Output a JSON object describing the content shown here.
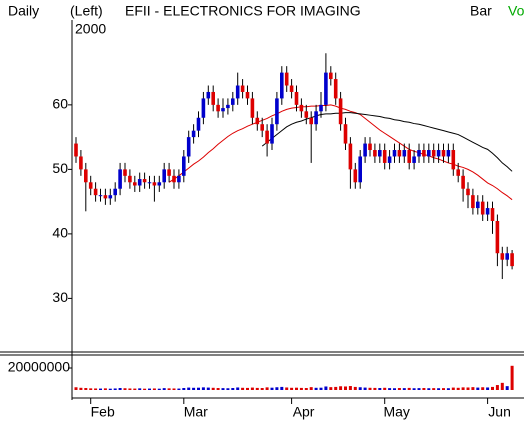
{
  "chart_data": {
    "type": "candlestick",
    "header_left": "Daily",
    "scale_side": "(Left)",
    "year": "2000",
    "title": "EFII - ELECTRONICS FOR IMAGING",
    "chart_style": "Bar",
    "indicator": "Vo",
    "indicator_color": "#00aa00",
    "up_color": "#0000cc",
    "down_color": "#dd0000",
    "categories": [
      null,
      null,
      null,
      "Feb",
      null,
      null,
      null,
      null,
      null,
      null,
      null,
      null,
      null,
      null,
      null,
      null,
      null,
      null,
      null,
      null,
      null,
      null,
      "Mar",
      null,
      null,
      null,
      null,
      null,
      null,
      null,
      null,
      null,
      null,
      null,
      null,
      null,
      null,
      null,
      null,
      null,
      null,
      null,
      null,
      null,
      "Apr",
      null,
      null,
      null,
      null,
      null,
      null,
      null,
      null,
      null,
      null,
      null,
      null,
      null,
      null,
      null,
      null,
      null,
      null,
      "May",
      null,
      null,
      null,
      null,
      null,
      null,
      null,
      null,
      null,
      null,
      null,
      null,
      null,
      null,
      null,
      null,
      null,
      null,
      null,
      null,
      "Jun",
      null,
      null,
      null,
      null,
      null
    ],
    "open": [
      54,
      52,
      50,
      48,
      47,
      46,
      46,
      45.5,
      46,
      47,
      50,
      49,
      48,
      47.5,
      48.5,
      48,
      48,
      47.5,
      48,
      50,
      49,
      48,
      49,
      52,
      55,
      56,
      58,
      61,
      62,
      60,
      59,
      59.5,
      60,
      61,
      63,
      62,
      61,
      58,
      57,
      56,
      54,
      57,
      61,
      65,
      63,
      62,
      60,
      59,
      58,
      57,
      59,
      60,
      65,
      64,
      61,
      57,
      54,
      50,
      48,
      52,
      54,
      53,
      52,
      53,
      51,
      52,
      53,
      52,
      53,
      51,
      52,
      53,
      52,
      53,
      52,
      53,
      52,
      53,
      50,
      49,
      47,
      46,
      44,
      45,
      43,
      44,
      42,
      37,
      36,
      37
    ],
    "high": [
      55,
      53,
      51,
      49,
      48,
      47,
      47,
      47,
      48,
      51,
      51,
      50,
      49,
      49.5,
      49.5,
      49,
      49,
      49,
      51,
      51,
      50,
      50,
      53,
      56,
      57,
      59,
      62,
      63,
      63,
      61,
      61,
      61,
      62,
      65,
      64,
      63,
      62,
      59,
      58,
      57,
      58,
      62,
      66,
      66,
      64,
      63,
      61,
      60,
      59,
      60,
      62,
      68,
      66,
      65,
      62,
      58,
      55,
      51,
      53,
      55,
      55,
      54,
      54,
      54,
      53,
      54,
      54,
      54,
      54,
      53,
      54,
      54,
      54,
      54,
      54,
      54,
      54,
      54,
      51,
      50,
      48,
      47,
      46,
      46,
      45,
      45,
      43,
      38,
      38,
      37.5
    ],
    "low": [
      51,
      49,
      43.5,
      46,
      45,
      45,
      44.5,
      44.5,
      45,
      46,
      48,
      47,
      46.5,
      46.5,
      47,
      47,
      45,
      46.5,
      47,
      48,
      47,
      47,
      48,
      51,
      54,
      55,
      57,
      60,
      59,
      58,
      58,
      58.5,
      59,
      60,
      61,
      60,
      57,
      56,
      55,
      52,
      53,
      56,
      60,
      62,
      61,
      59,
      58,
      57,
      51,
      56,
      58,
      59,
      63,
      60,
      56,
      53,
      47,
      47,
      47,
      51,
      52,
      51,
      51,
      50,
      50,
      51,
      51,
      51,
      50,
      50,
      51,
      51,
      51,
      51,
      51,
      51,
      51,
      49,
      48,
      45,
      44,
      43,
      43,
      42,
      42,
      40,
      35,
      33,
      35,
      34.5
    ],
    "close": [
      52,
      50,
      48,
      47,
      46,
      46,
      45.5,
      46,
      47,
      50,
      49,
      48,
      47.5,
      48.5,
      48,
      48,
      47.5,
      48,
      50,
      49,
      48,
      49,
      52,
      55,
      56,
      58,
      61,
      62,
      60,
      59,
      59.5,
      60,
      61,
      63,
      62,
      61,
      58,
      57,
      56,
      54,
      57,
      61,
      65,
      63,
      62,
      60,
      59,
      58,
      57,
      59,
      60,
      65,
      64,
      61,
      57,
      54,
      50,
      48,
      52,
      54,
      53,
      52,
      53,
      51,
      52,
      53,
      52,
      53,
      51,
      52,
      53,
      52,
      53,
      52,
      53,
      52,
      53,
      50,
      49,
      47,
      46,
      44,
      45,
      43,
      44,
      42,
      37,
      36,
      37,
      35
    ],
    "volume": [
      2500000,
      2000000,
      1800000,
      1500000,
      1400000,
      1300000,
      1500000,
      1200000,
      1400000,
      1800000,
      1600000,
      1400000,
      1300000,
      1500000,
      1200000,
      1300000,
      1400000,
      1200000,
      1700000,
      1500000,
      1400000,
      1300000,
      1800000,
      2200000,
      2000000,
      2100000,
      2400000,
      2200000,
      2000000,
      1800000,
      1700000,
      1600000,
      1800000,
      2300000,
      2000000,
      1900000,
      2200000,
      1900000,
      1800000,
      2400000,
      2100000,
      2500000,
      2800000,
      2300000,
      2000000,
      2100000,
      1900000,
      1800000,
      2600000,
      2000000,
      2100000,
      3200000,
      2600000,
      2800000,
      3400000,
      3200000,
      3600000,
      2800000,
      2500000,
      2200000,
      2000000,
      1900000,
      1800000,
      2000000,
      1700000,
      1600000,
      1800000,
      1700000,
      1900000,
      1600000,
      1700000,
      1800000,
      1600000,
      1700000,
      1600000,
      1700000,
      1600000,
      2200000,
      2000000,
      2400000,
      2300000,
      2600000,
      2200000,
      2500000,
      2300000,
      2800000,
      4500000,
      6500000,
      3500000,
      22000000
    ],
    "moving_averages": [
      {
        "color": "#dd0000",
        "values": [
          null,
          null,
          null,
          null,
          null,
          null,
          null,
          null,
          null,
          null,
          null,
          null,
          null,
          null,
          null,
          null,
          null,
          null,
          null,
          48,
          48.5,
          49,
          49.6,
          50.2,
          50.8,
          51.3,
          51.9,
          52.6,
          53.2,
          53.9,
          54.5,
          55.1,
          55.6,
          56,
          56.3,
          56.7,
          57,
          57.3,
          57.6,
          57.9,
          58.3,
          58.6,
          59,
          59.3,
          59.5,
          59.6,
          59.7,
          59.7,
          59.8,
          59.8,
          59.9,
          59.9,
          60,
          59.8,
          59.5,
          59.3,
          59,
          58.8,
          58.5,
          57.9,
          57.3,
          56.7,
          56.1,
          55.6,
          55.1,
          54.6,
          54.1,
          53.6,
          53.1,
          52.8,
          52.6,
          52.3,
          52.1,
          51.8,
          51.6,
          51.3,
          51,
          50.8,
          50.5,
          50.3,
          50,
          49.6,
          49.1,
          48.5,
          47.9,
          47.5,
          47,
          46.4,
          45.9,
          45.3
        ]
      },
      {
        "color": "#000000",
        "values": [
          null,
          null,
          null,
          null,
          null,
          null,
          null,
          null,
          null,
          null,
          null,
          null,
          null,
          null,
          null,
          null,
          null,
          null,
          null,
          null,
          null,
          null,
          null,
          null,
          null,
          null,
          null,
          null,
          null,
          null,
          null,
          null,
          null,
          null,
          null,
          null,
          null,
          null,
          53.6,
          54.2,
          54.8,
          55.4,
          56,
          56.6,
          57,
          57.3,
          57.5,
          57.8,
          58,
          58.3,
          58.5,
          58.6,
          58.6,
          58.7,
          58.7,
          58.8,
          58.8,
          58.7,
          58.6,
          58.5,
          58.4,
          58.3,
          58.2,
          58,
          57.9,
          57.7,
          57.6,
          57.4,
          57.3,
          57.1,
          57,
          56.8,
          56.6,
          56.4,
          56.2,
          56,
          55.8,
          55.6,
          55.4,
          55,
          54.6,
          54.2,
          53.8,
          53.4,
          53.1,
          52.5,
          51.8,
          51,
          50.4,
          49.7
        ]
      }
    ],
    "ylim": [
      22,
      73
    ],
    "yticks": [
      30,
      40,
      50,
      60
    ],
    "y2lim": [
      0,
      30000000
    ],
    "y2ticks": [
      20000000
    ]
  }
}
